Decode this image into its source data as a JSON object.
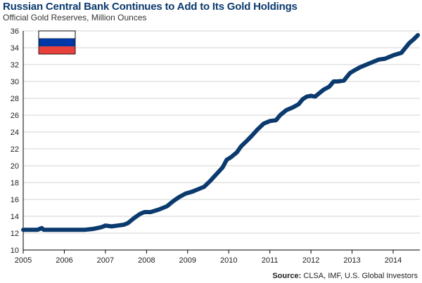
{
  "header": {
    "title": "Russian Central Bank Continues to Add to Its Gold Holdings",
    "subtitle": "Official Gold Reserves, Million Ounces"
  },
  "footer": {
    "source_label": "Source:",
    "source_text": "CLSA, IMF, U.S. Global Investors"
  },
  "flag": {
    "country": "Russia",
    "colors": [
      "#ffffff",
      "#0039a6",
      "#e8403a"
    ]
  },
  "style": {
    "line_color": "#0b3a6e",
    "title_color": "#0b3a6e"
  },
  "chart_data": {
    "type": "line",
    "title": "Russian Central Bank Continues to Add to Its Gold Holdings",
    "subtitle": "Official Gold Reserves, Million Ounces",
    "xlabel": "",
    "ylabel": "",
    "xlim": [
      2005,
      2014.65
    ],
    "ylim": [
      10,
      36
    ],
    "yticks": [
      10,
      12,
      14,
      16,
      18,
      20,
      22,
      24,
      26,
      28,
      30,
      32,
      34,
      36
    ],
    "xticks": [
      2005,
      2006,
      2007,
      2008,
      2009,
      2010,
      2011,
      2012,
      2013,
      2014
    ],
    "grid": true,
    "legend": "none",
    "series": [
      {
        "x": [
          2005.0,
          2005.2,
          2005.35,
          2005.45,
          2005.5,
          2005.6,
          2006.0,
          2006.2,
          2006.5,
          2006.7,
          2006.9,
          2007.0,
          2007.15,
          2007.3,
          2007.45,
          2007.55,
          2007.7,
          2007.85,
          2007.95,
          2008.1,
          2008.3,
          2008.5,
          2008.65,
          2008.8,
          2008.95,
          2009.1,
          2009.25,
          2009.4,
          2009.55,
          2009.7,
          2009.85,
          2009.95,
          2010.05,
          2010.2,
          2010.3,
          2010.45,
          2010.55,
          2010.7,
          2010.85,
          2011.0,
          2011.15,
          2011.25,
          2011.4,
          2011.55,
          2011.7,
          2011.8,
          2011.9,
          2012.0,
          2012.1,
          2012.2,
          2012.3,
          2012.45,
          2012.55,
          2012.65,
          2012.8,
          2012.95,
          2013.05,
          2013.2,
          2013.35,
          2013.5,
          2013.65,
          2013.8,
          2014.0,
          2014.2,
          2014.3,
          2014.4,
          2014.5,
          2014.6
        ],
        "y": [
          12.4,
          12.4,
          12.4,
          12.6,
          12.4,
          12.4,
          12.4,
          12.4,
          12.4,
          12.5,
          12.7,
          12.9,
          12.8,
          12.9,
          13.0,
          13.2,
          13.8,
          14.3,
          14.5,
          14.5,
          14.8,
          15.2,
          15.8,
          16.3,
          16.7,
          16.9,
          17.2,
          17.5,
          18.2,
          19.0,
          19.8,
          20.7,
          21.0,
          21.6,
          22.3,
          23.0,
          23.5,
          24.3,
          25.0,
          25.3,
          25.4,
          26.0,
          26.6,
          26.9,
          27.3,
          27.9,
          28.2,
          28.3,
          28.2,
          28.6,
          29.0,
          29.4,
          30.0,
          30.0,
          30.1,
          31.0,
          31.3,
          31.7,
          32.0,
          32.3,
          32.6,
          32.7,
          33.1,
          33.4,
          34.0,
          34.6,
          35.0,
          35.5
        ]
      }
    ]
  }
}
